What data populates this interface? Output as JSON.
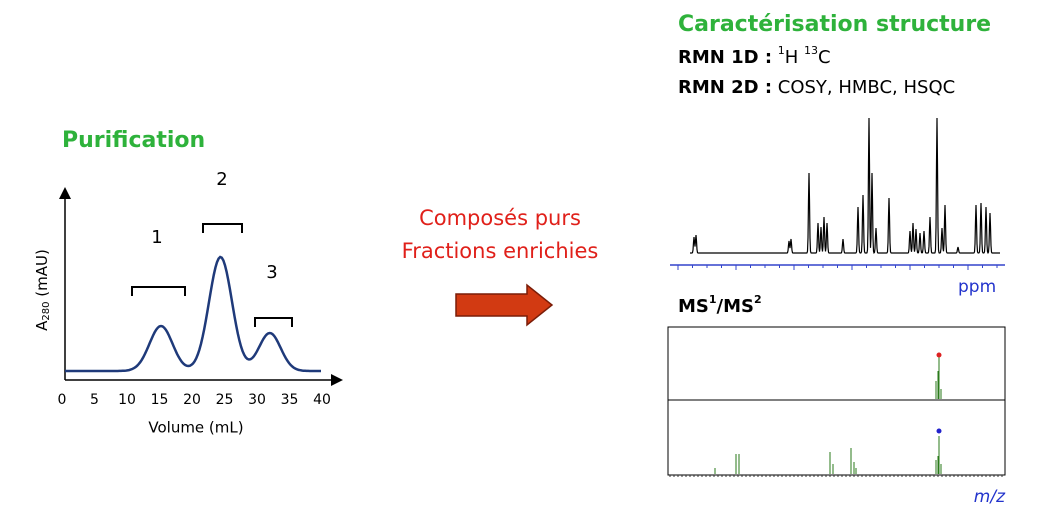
{
  "purification": {
    "title": "Purification",
    "y_label": {
      "main": "A",
      "sub": "280",
      "rest": " (mAU)"
    },
    "x_label": "Volume (mL)",
    "x_ticks": [
      0,
      5,
      10,
      15,
      20,
      25,
      30,
      35,
      40
    ],
    "peaks": [
      "1",
      "2",
      "3"
    ]
  },
  "arrow": {
    "lines": [
      "Composés purs",
      "Fractions enrichies"
    ]
  },
  "characterisation": {
    "title": "Caractérisation structure",
    "rmn1d": {
      "label": "RMN 1D :",
      "sup1": "1",
      "t1": "H ",
      "sup2": "13",
      "t2": "C"
    },
    "rmn2d": {
      "label": "RMN 2D :",
      "text": " COSY, HMBC, HSQC"
    },
    "ppm": "ppm",
    "ms": {
      "a": "MS",
      "sup1": "1",
      "b": "/MS",
      "sup2": "2"
    },
    "mz": "m/z"
  }
}
